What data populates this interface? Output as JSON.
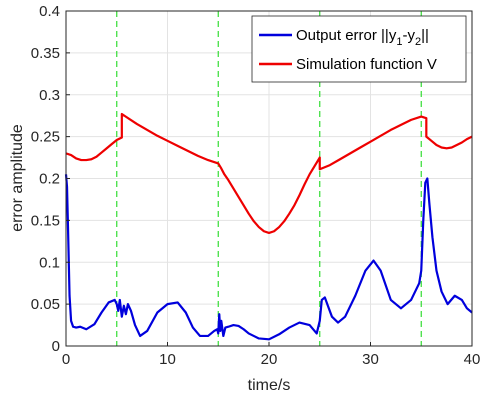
{
  "chart_data": {
    "type": "line",
    "title": "",
    "xlabel": "time/s",
    "ylabel": "error amplitude",
    "xlim": [
      0,
      40
    ],
    "ylim": [
      0,
      0.4
    ],
    "xticks": [
      0,
      10,
      20,
      30,
      40
    ],
    "yticks": [
      0,
      0.05,
      0.1,
      0.15,
      0.2,
      0.25,
      0.3,
      0.35,
      0.4
    ],
    "grid": true,
    "legend_position": "top-right",
    "switching_times": [
      5,
      15,
      25,
      35
    ],
    "switching_line_color": "#33dd33",
    "series": [
      {
        "name": "Output error ||y1-y2||",
        "legend_main": "Output error ||y",
        "legend_sub1": "1",
        "legend_mid": "-y",
        "legend_sub2": "2",
        "legend_end": "||",
        "color": "#0000dd",
        "x": [
          0,
          0.1,
          0.2,
          0.35,
          0.5,
          0.7,
          1.0,
          1.4,
          2.0,
          2.8,
          3.5,
          4.2,
          4.8,
          5.0,
          5.15,
          5.3,
          5.5,
          5.7,
          5.9,
          6.1,
          6.4,
          6.8,
          7.3,
          8.0,
          9.0,
          10.0,
          11.0,
          11.8,
          12.5,
          13.2,
          14.0,
          14.6,
          14.9,
          15.0,
          15.1,
          15.2,
          15.3,
          15.5,
          15.7,
          16.0,
          16.5,
          17.0,
          17.5,
          18.0,
          19.0,
          20.0,
          21.0,
          22.0,
          23.0,
          24.0,
          24.7,
          25.0,
          25.2,
          25.5,
          25.8,
          26.2,
          26.8,
          27.5,
          28.5,
          29.5,
          30.3,
          31.0,
          32.0,
          33.0,
          34.0,
          34.8,
          35.0,
          35.2,
          35.4,
          35.6,
          35.8,
          36.1,
          36.5,
          37.0,
          37.6,
          38.3,
          39.0,
          39.5,
          40.0
        ],
        "y": [
          0.205,
          0.19,
          0.14,
          0.06,
          0.03,
          0.023,
          0.022,
          0.023,
          0.02,
          0.026,
          0.04,
          0.052,
          0.055,
          0.05,
          0.042,
          0.055,
          0.035,
          0.048,
          0.038,
          0.05,
          0.042,
          0.025,
          0.012,
          0.018,
          0.04,
          0.05,
          0.052,
          0.04,
          0.022,
          0.012,
          0.012,
          0.018,
          0.02,
          0.015,
          0.038,
          0.018,
          0.03,
          0.012,
          0.022,
          0.023,
          0.025,
          0.024,
          0.02,
          0.015,
          0.009,
          0.008,
          0.014,
          0.022,
          0.028,
          0.025,
          0.015,
          0.03,
          0.055,
          0.058,
          0.048,
          0.035,
          0.028,
          0.035,
          0.06,
          0.09,
          0.102,
          0.09,
          0.055,
          0.045,
          0.055,
          0.075,
          0.09,
          0.15,
          0.195,
          0.2,
          0.17,
          0.13,
          0.09,
          0.065,
          0.05,
          0.06,
          0.055,
          0.045,
          0.04
        ]
      },
      {
        "name": "Simulation function V",
        "color": "#ee0000",
        "x": [
          0,
          0.5,
          1.0,
          1.5,
          2.0,
          2.5,
          3.0,
          3.5,
          4.0,
          4.5,
          5.0,
          5.5,
          5.5,
          6.0,
          7.0,
          8.0,
          9.0,
          10.0,
          11.0,
          12.0,
          13.0,
          14.0,
          15.0,
          15.3,
          15.6,
          16.0,
          16.5,
          17.0,
          17.5,
          18.0,
          18.5,
          19.0,
          19.5,
          20.0,
          20.5,
          21.0,
          21.5,
          22.0,
          22.5,
          23.0,
          23.5,
          24.0,
          24.5,
          25.0,
          25.0,
          26.0,
          27.0,
          28.0,
          29.0,
          30.0,
          31.0,
          32.0,
          33.0,
          34.0,
          35.0,
          35.5,
          35.5,
          36.0,
          36.5,
          37.0,
          37.5,
          38.0,
          38.5,
          39.0,
          39.5,
          40.0
        ],
        "y": [
          0.23,
          0.228,
          0.224,
          0.222,
          0.222,
          0.223,
          0.226,
          0.231,
          0.236,
          0.241,
          0.246,
          0.249,
          0.277,
          0.273,
          0.265,
          0.258,
          0.251,
          0.245,
          0.239,
          0.233,
          0.227,
          0.222,
          0.218,
          0.212,
          0.205,
          0.198,
          0.188,
          0.178,
          0.168,
          0.158,
          0.149,
          0.142,
          0.137,
          0.135,
          0.137,
          0.142,
          0.149,
          0.158,
          0.168,
          0.18,
          0.193,
          0.205,
          0.215,
          0.225,
          0.211,
          0.216,
          0.223,
          0.23,
          0.237,
          0.244,
          0.251,
          0.258,
          0.264,
          0.27,
          0.274,
          0.272,
          0.25,
          0.245,
          0.24,
          0.237,
          0.236,
          0.237,
          0.24,
          0.243,
          0.247,
          0.25
        ]
      }
    ]
  }
}
